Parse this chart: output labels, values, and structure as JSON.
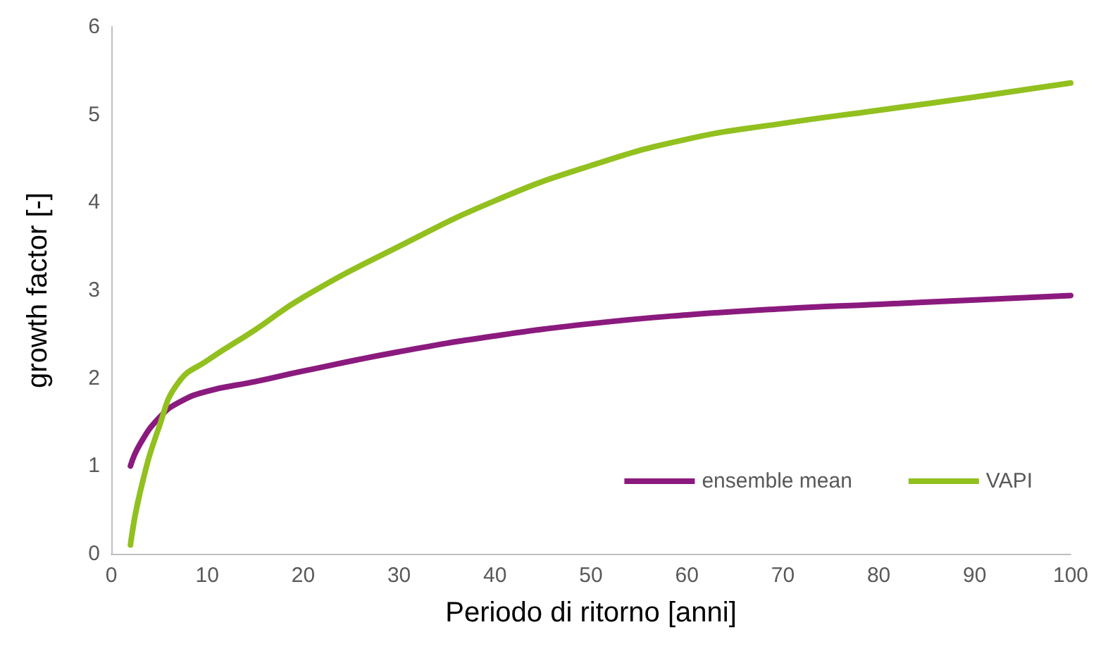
{
  "chart_data": {
    "type": "line",
    "xlabel": "Periodo di ritorno [anni]",
    "ylabel": "growth factor [-]",
    "x": [
      2,
      3,
      5,
      7,
      10,
      15,
      20,
      30,
      40,
      50,
      60,
      70,
      80,
      90,
      100
    ],
    "series": [
      {
        "name": "ensemble mean",
        "color": "#8b1a7e",
        "values": [
          1.0,
          1.25,
          1.55,
          1.72,
          1.85,
          1.96,
          2.08,
          2.3,
          2.48,
          2.62,
          2.72,
          2.79,
          2.84,
          2.89,
          2.94
        ]
      },
      {
        "name": "VAPI",
        "color": "#92c01f",
        "values": [
          0.1,
          0.7,
          1.45,
          1.95,
          2.2,
          2.55,
          2.92,
          3.5,
          4.02,
          4.42,
          4.72,
          4.9,
          5.05,
          5.2,
          5.36
        ]
      }
    ],
    "xlim": [
      0,
      100
    ],
    "xticks": [
      0,
      10,
      20,
      30,
      40,
      50,
      60,
      70,
      80,
      90,
      100
    ],
    "ylim": [
      0,
      6
    ],
    "yticks": [
      0,
      1,
      2,
      3,
      4,
      5,
      6
    ],
    "legend": "bottom right",
    "grid": false,
    "marker": "none",
    "line_style": "solid"
  }
}
